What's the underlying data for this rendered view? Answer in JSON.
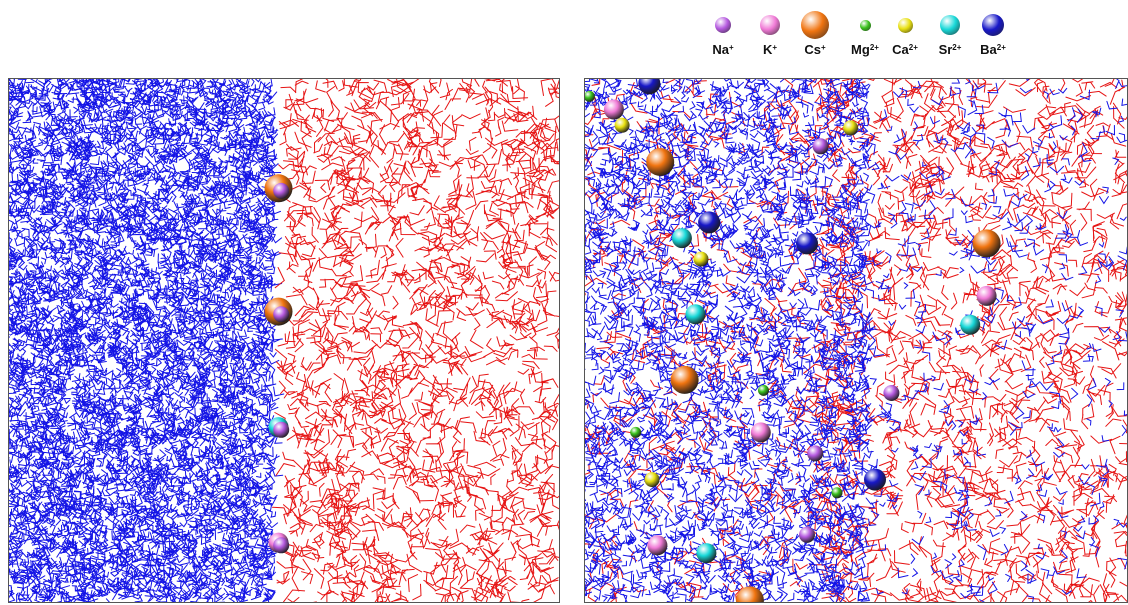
{
  "colors": {
    "phase_left": "#1414e6",
    "phase_right": "#e61414",
    "frame": "#555555"
  },
  "legend": [
    {
      "id": "na",
      "base": "Na",
      "charge": "+",
      "color": "#b65be0",
      "size": 16
    },
    {
      "id": "k",
      "base": "K",
      "charge": "+",
      "color": "#f07ad6",
      "size": 20
    },
    {
      "id": "cs",
      "base": "Cs",
      "charge": "+",
      "color": "#f07410",
      "size": 28
    },
    {
      "id": "mg",
      "base": "Mg",
      "charge": "2+",
      "color": "#3ac21c",
      "size": 11
    },
    {
      "id": "ca",
      "base": "Ca",
      "charge": "2+",
      "color": "#e8e010",
      "size": 15
    },
    {
      "id": "sr",
      "base": "Sr",
      "charge": "2+",
      "color": "#18d8d8",
      "size": 20
    },
    {
      "id": "ba",
      "base": "Ba",
      "charge": "2+",
      "color": "#1818c8",
      "size": 22
    }
  ],
  "panels": [
    {
      "id": "separated",
      "interface_fraction": 0.49,
      "mixing": 0.0,
      "ions": [
        {
          "ion": "cs",
          "fx": 0.49,
          "fy": 0.21
        },
        {
          "ion": "na",
          "fx": 0.495,
          "fy": 0.215
        },
        {
          "ion": "cs",
          "fx": 0.49,
          "fy": 0.445
        },
        {
          "ion": "na",
          "fx": 0.495,
          "fy": 0.45
        },
        {
          "ion": "sr",
          "fx": 0.49,
          "fy": 0.665
        },
        {
          "ion": "na",
          "fx": 0.495,
          "fy": 0.67
        },
        {
          "ion": "k",
          "fx": 0.49,
          "fy": 0.885
        },
        {
          "ion": "na",
          "fx": 0.495,
          "fy": 0.89
        }
      ]
    },
    {
      "id": "mixed",
      "interface_fraction": 0.5,
      "mixing": 1.0,
      "ions": [
        {
          "ion": "ba",
          "fx": 0.12,
          "fy": 0.01
        },
        {
          "ion": "mg",
          "fx": 0.01,
          "fy": 0.035
        },
        {
          "ion": "k",
          "fx": 0.055,
          "fy": 0.06
        },
        {
          "ion": "ca",
          "fx": 0.07,
          "fy": 0.09
        },
        {
          "ion": "ca",
          "fx": 0.49,
          "fy": 0.095
        },
        {
          "ion": "na",
          "fx": 0.435,
          "fy": 0.13
        },
        {
          "ion": "cs",
          "fx": 0.14,
          "fy": 0.16
        },
        {
          "ion": "ba",
          "fx": 0.23,
          "fy": 0.275
        },
        {
          "ion": "sr",
          "fx": 0.18,
          "fy": 0.305
        },
        {
          "ion": "ba",
          "fx": 0.41,
          "fy": 0.315
        },
        {
          "ion": "cs",
          "fx": 0.74,
          "fy": 0.315
        },
        {
          "ion": "ca",
          "fx": 0.215,
          "fy": 0.345
        },
        {
          "ion": "k",
          "fx": 0.74,
          "fy": 0.415
        },
        {
          "ion": "sr",
          "fx": 0.71,
          "fy": 0.47
        },
        {
          "ion": "sr",
          "fx": 0.205,
          "fy": 0.45
        },
        {
          "ion": "cs",
          "fx": 0.185,
          "fy": 0.575
        },
        {
          "ion": "mg",
          "fx": 0.33,
          "fy": 0.595
        },
        {
          "ion": "na",
          "fx": 0.565,
          "fy": 0.6
        },
        {
          "ion": "mg",
          "fx": 0.095,
          "fy": 0.675
        },
        {
          "ion": "k",
          "fx": 0.325,
          "fy": 0.675
        },
        {
          "ion": "na",
          "fx": 0.425,
          "fy": 0.715
        },
        {
          "ion": "ca",
          "fx": 0.125,
          "fy": 0.765
        },
        {
          "ion": "ba",
          "fx": 0.535,
          "fy": 0.765
        },
        {
          "ion": "mg",
          "fx": 0.465,
          "fy": 0.79
        },
        {
          "ion": "na",
          "fx": 0.41,
          "fy": 0.87
        },
        {
          "ion": "k",
          "fx": 0.135,
          "fy": 0.89
        },
        {
          "ion": "sr",
          "fx": 0.225,
          "fy": 0.905
        },
        {
          "ion": "cs",
          "fx": 0.305,
          "fy": 0.995
        }
      ]
    }
  ]
}
